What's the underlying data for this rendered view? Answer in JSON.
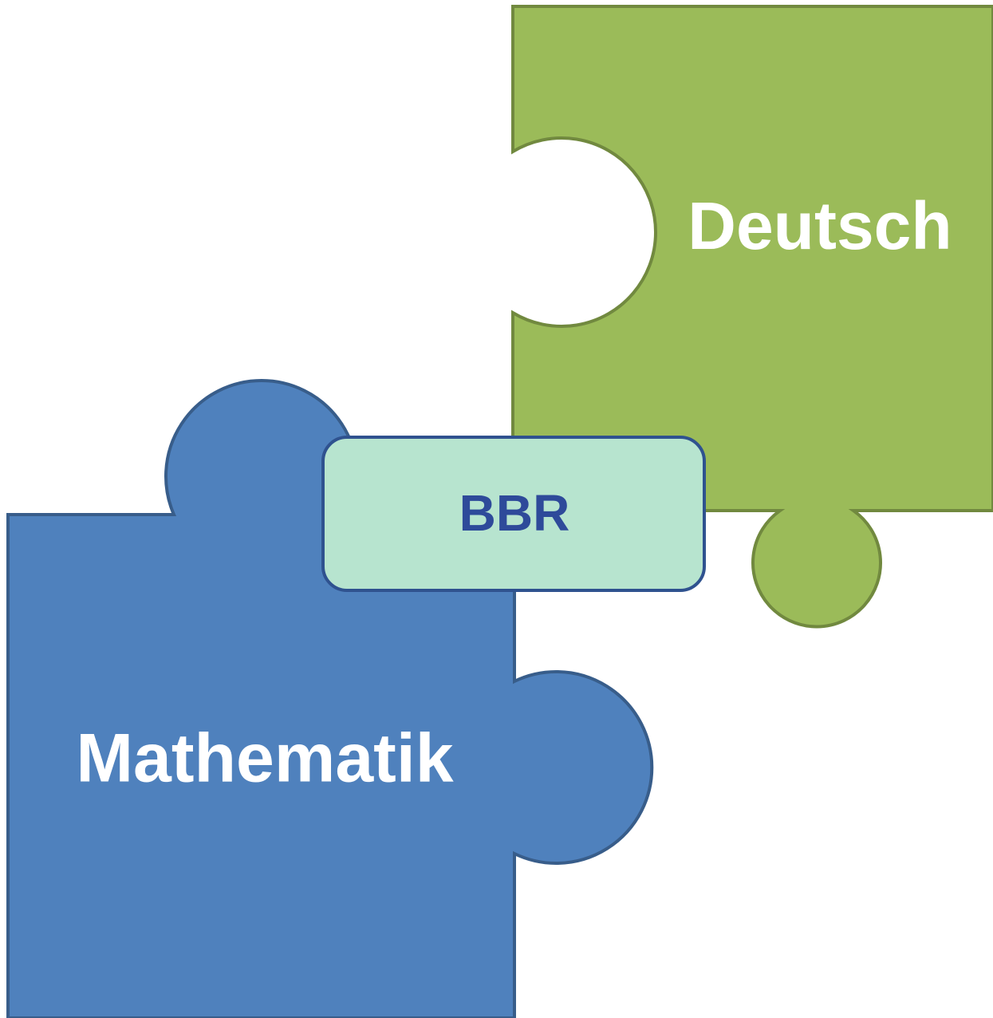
{
  "pieces": [
    {
      "label": "Deutsch"
    },
    {
      "label": "Mathematik"
    }
  ],
  "center": {
    "label": "BBR"
  }
}
